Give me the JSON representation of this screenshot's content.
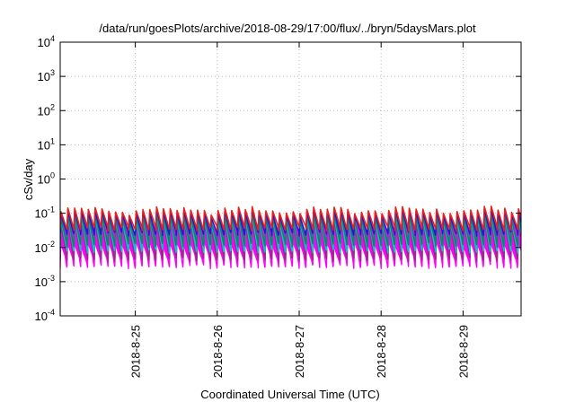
{
  "chart_data": {
    "type": "area",
    "title": "/data/run/goesPlots/archive/2018-08-29/17:00/flux/../bryn/5daysMars.plot",
    "xlabel": "Coordinated Universal Time (UTC)",
    "ylabel": "cSv/day",
    "y_scale": "log",
    "ylim": [
      0.0001,
      10000
    ],
    "xlim": [
      "2018-08-24T02:00",
      "2018-08-29T17:00"
    ],
    "y_ticks": [
      {
        "base": "10",
        "exp": "4",
        "value": 10000
      },
      {
        "base": "10",
        "exp": "3",
        "value": 1000
      },
      {
        "base": "10",
        "exp": "2",
        "value": 100
      },
      {
        "base": "10",
        "exp": "1",
        "value": 10
      },
      {
        "base": "10",
        "exp": "0",
        "value": 1
      },
      {
        "base": "10",
        "exp": "-1",
        "value": 0.1
      },
      {
        "base": "10",
        "exp": "-2",
        "value": 0.01
      },
      {
        "base": "10",
        "exp": "-3",
        "value": 0.001
      },
      {
        "base": "10",
        "exp": "-4",
        "value": 0.0001
      }
    ],
    "x_ticks": [
      "2018-8-25",
      "2018-8-26",
      "2018-8-27",
      "2018-8-28",
      "2018-8-29"
    ],
    "grid": true,
    "sawtooth_period_hours": 2,
    "envelope": {
      "peak_typical": 0.09,
      "peak_max": 0.17,
      "trough_typical": 0.004,
      "trough_min": 0.0025
    },
    "series": [
      {
        "color": "#ff00ff",
        "peak": 0.04,
        "trough": 0.0028
      },
      {
        "color": "#9a2a8a",
        "peak": 0.055,
        "trough": 0.0045
      },
      {
        "color": "#00c8c8",
        "peak": 0.07,
        "trough": 0.008
      },
      {
        "color": "#008a6a",
        "peak": 0.08,
        "trough": 0.012
      },
      {
        "color": "#1a1ad8",
        "peak": 0.1,
        "trough": 0.025
      },
      {
        "color": "#e82020",
        "peak": 0.12,
        "trough": 0.035
      }
    ]
  }
}
